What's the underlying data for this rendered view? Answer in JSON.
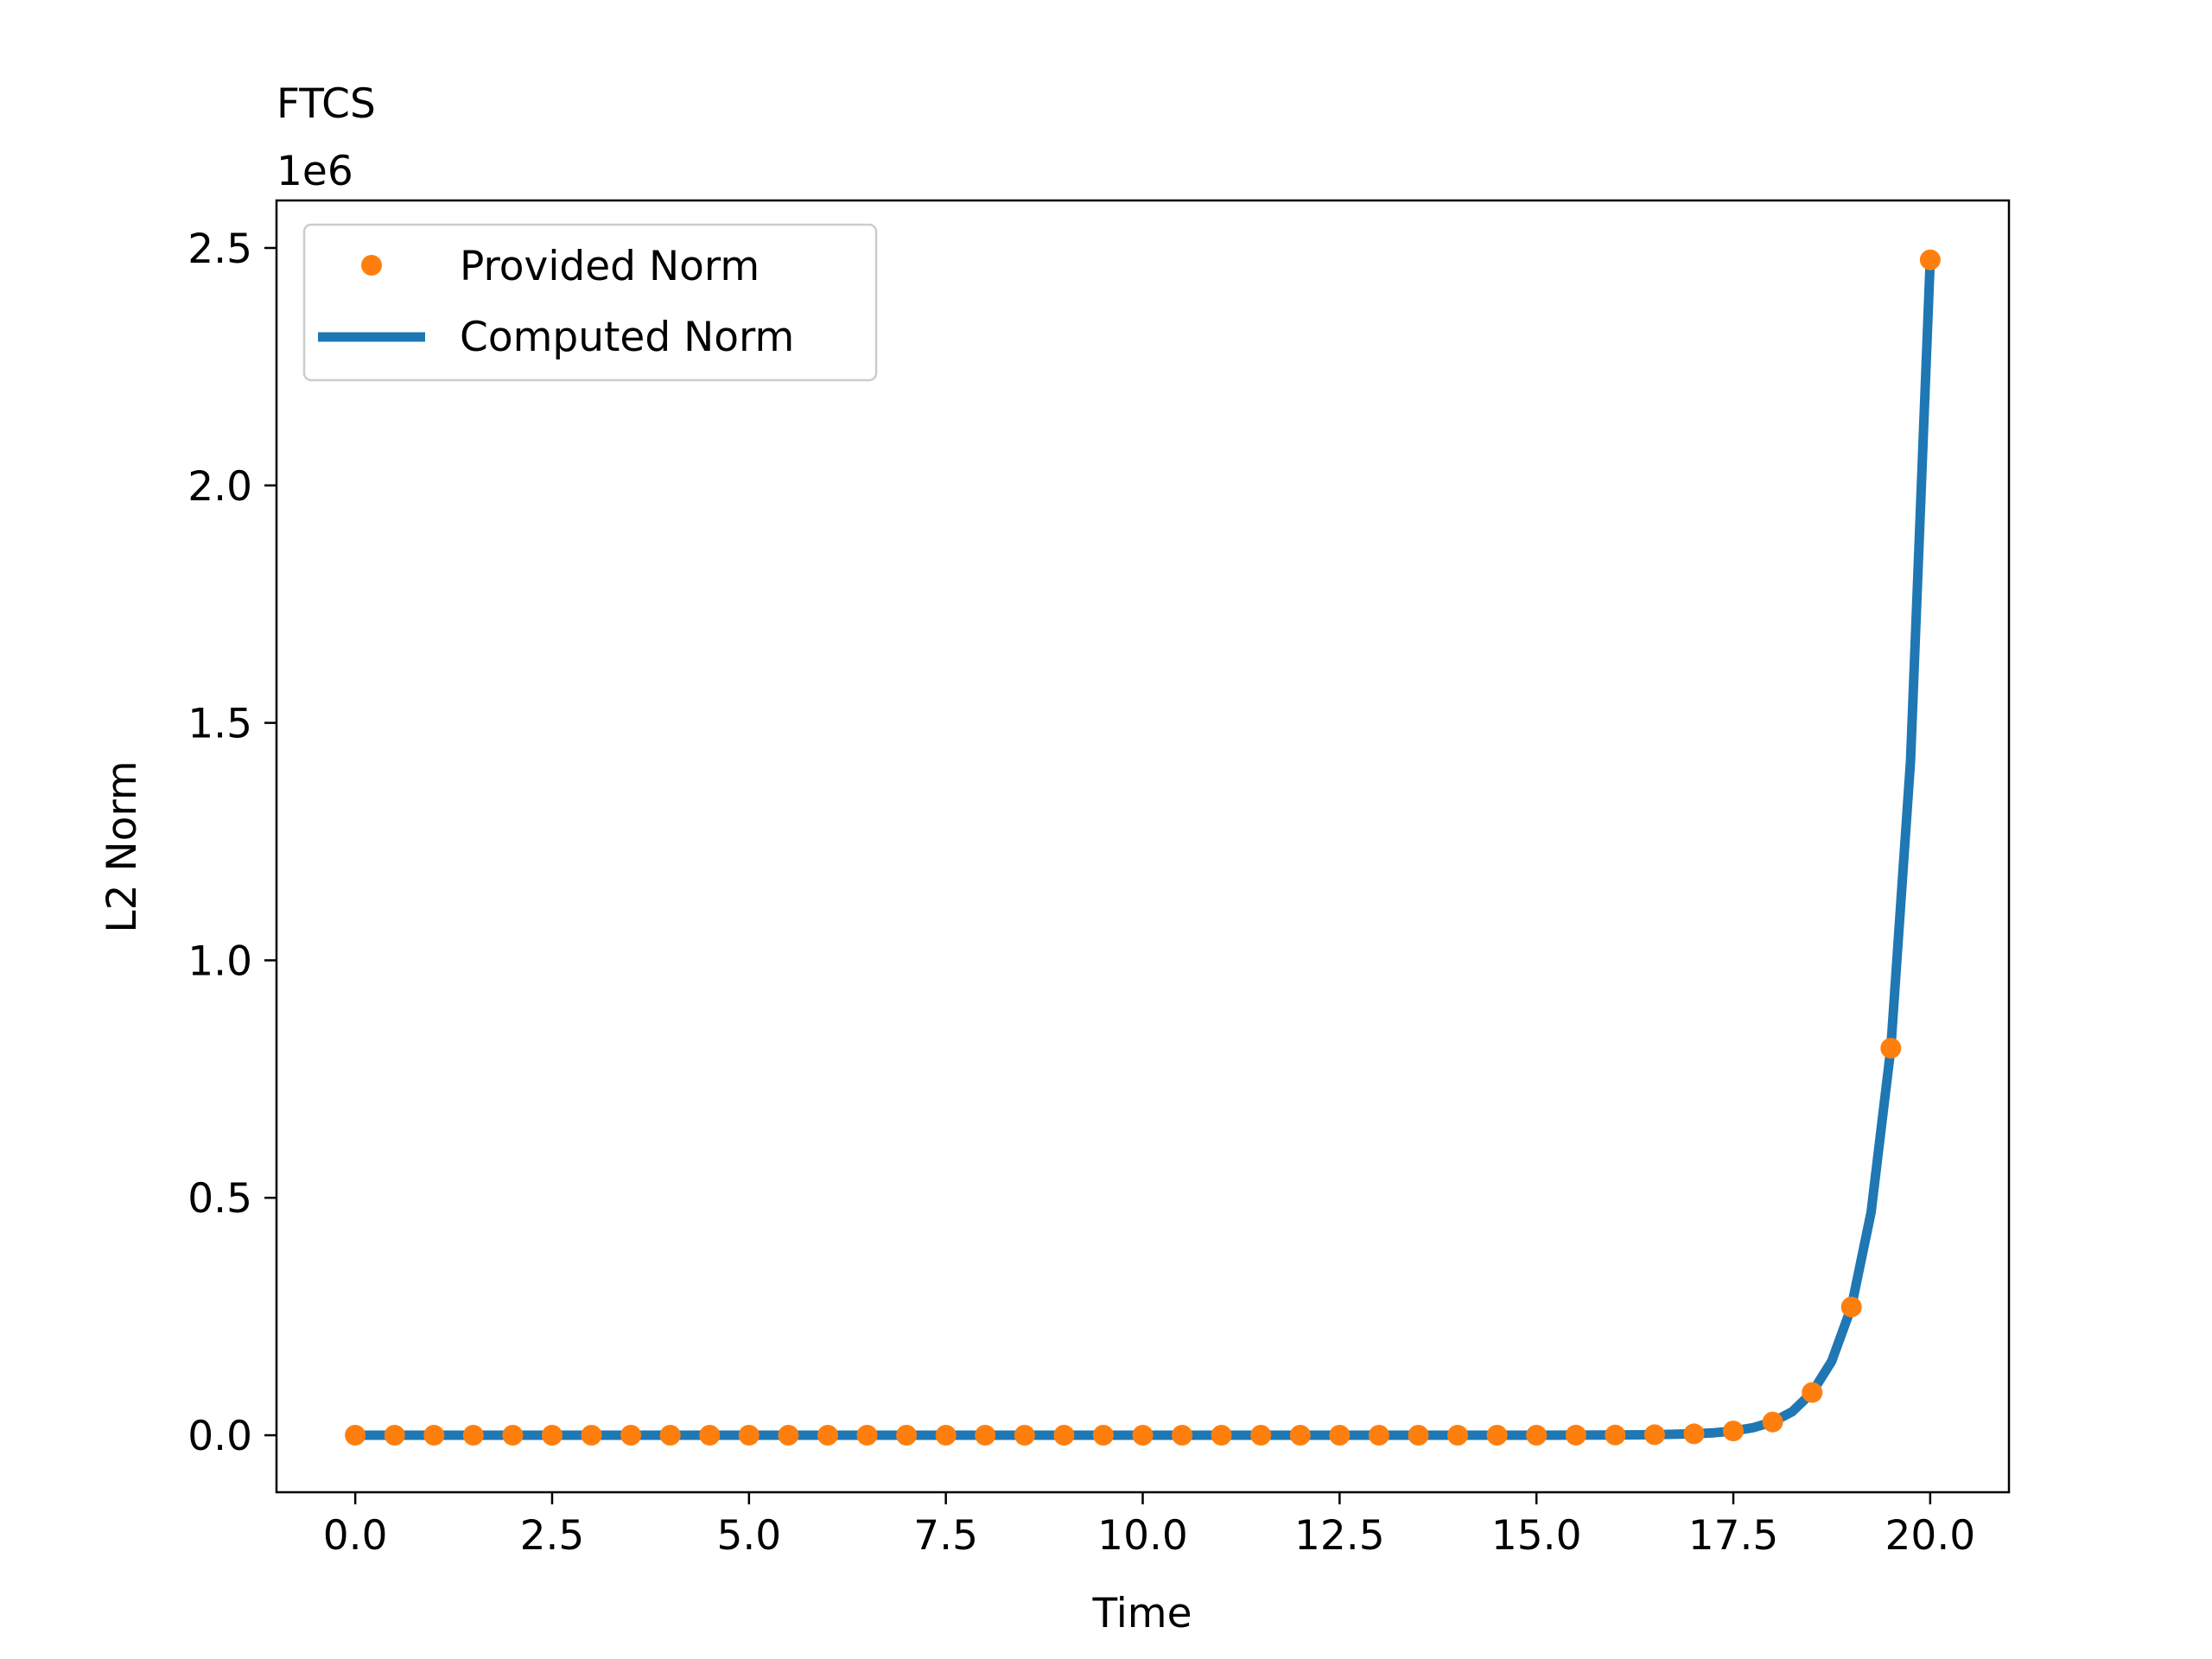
{
  "chart_data": {
    "type": "line",
    "title": "FTCS",
    "xlabel": "Time",
    "ylabel": "L2 Norm",
    "y_offset_label": "1e6",
    "y_scale_factor": 1000000,
    "xlim": [
      -1.0,
      21.0
    ],
    "ylim": [
      -0.12,
      2.6
    ],
    "xticks": [
      0.0,
      2.5,
      5.0,
      7.5,
      10.0,
      12.5,
      15.0,
      17.5,
      20.0
    ],
    "xtick_labels": [
      "0.0",
      "2.5",
      "5.0",
      "7.5",
      "10.0",
      "12.5",
      "15.0",
      "17.5",
      "20.0"
    ],
    "yticks": [
      0.0,
      0.5,
      1.0,
      1.5,
      2.0,
      2.5
    ],
    "ytick_labels": [
      "0.0",
      "0.5",
      "1.0",
      "1.5",
      "2.0",
      "2.5"
    ],
    "grid": false,
    "legend_position": "upper left",
    "series": [
      {
        "name": "Provided Norm",
        "style": "markers",
        "color": "#ff7f0e",
        "x": [
          0.0,
          0.5,
          1.0,
          1.5,
          2.0,
          2.5,
          3.0,
          3.5,
          4.0,
          4.5,
          5.0,
          5.5,
          6.0,
          6.5,
          7.0,
          7.5,
          8.0,
          8.5,
          9.0,
          9.5,
          10.0,
          10.5,
          11.0,
          11.5,
          12.0,
          12.5,
          13.0,
          13.5,
          14.0,
          14.5,
          15.0,
          15.5,
          16.0,
          16.5,
          17.0,
          17.5,
          18.0,
          18.5,
          19.0,
          19.5,
          20.0
        ],
        "y": [
          0.0,
          0.0,
          0.0,
          0.0,
          0.0,
          0.0,
          0.0,
          0.0,
          0.0,
          0.0,
          0.0,
          0.0,
          0.0,
          0.0,
          0.0,
          0.0,
          0.0,
          0.0,
          0.0,
          0.0,
          0.0,
          0.0,
          0.0,
          0.0,
          0.0,
          0.0,
          0.0,
          0.0,
          0.0,
          0.0,
          0.0001,
          0.0002,
          0.0005,
          0.0012,
          0.003,
          0.009,
          0.028,
          0.09,
          0.27,
          0.815,
          2.475
        ]
      },
      {
        "name": "Computed Norm",
        "style": "line",
        "color": "#1f77b4",
        "x": [
          0.0,
          1.0,
          2.0,
          3.0,
          4.0,
          5.0,
          6.0,
          7.0,
          8.0,
          9.0,
          10.0,
          11.0,
          12.0,
          13.0,
          14.0,
          15.0,
          15.5,
          16.0,
          16.5,
          17.0,
          17.25,
          17.5,
          17.75,
          18.0,
          18.25,
          18.5,
          18.75,
          19.0,
          19.25,
          19.5,
          19.75,
          20.0
        ],
        "y": [
          0.0,
          0.0,
          0.0,
          0.0,
          0.0,
          0.0,
          0.0,
          0.0,
          0.0,
          0.0,
          0.0,
          0.0,
          0.0,
          0.0,
          0.0,
          0.0001,
          0.0002,
          0.0005,
          0.0012,
          0.003,
          0.0052,
          0.009,
          0.016,
          0.028,
          0.05,
          0.09,
          0.156,
          0.27,
          0.47,
          0.815,
          1.42,
          2.475
        ]
      }
    ]
  }
}
